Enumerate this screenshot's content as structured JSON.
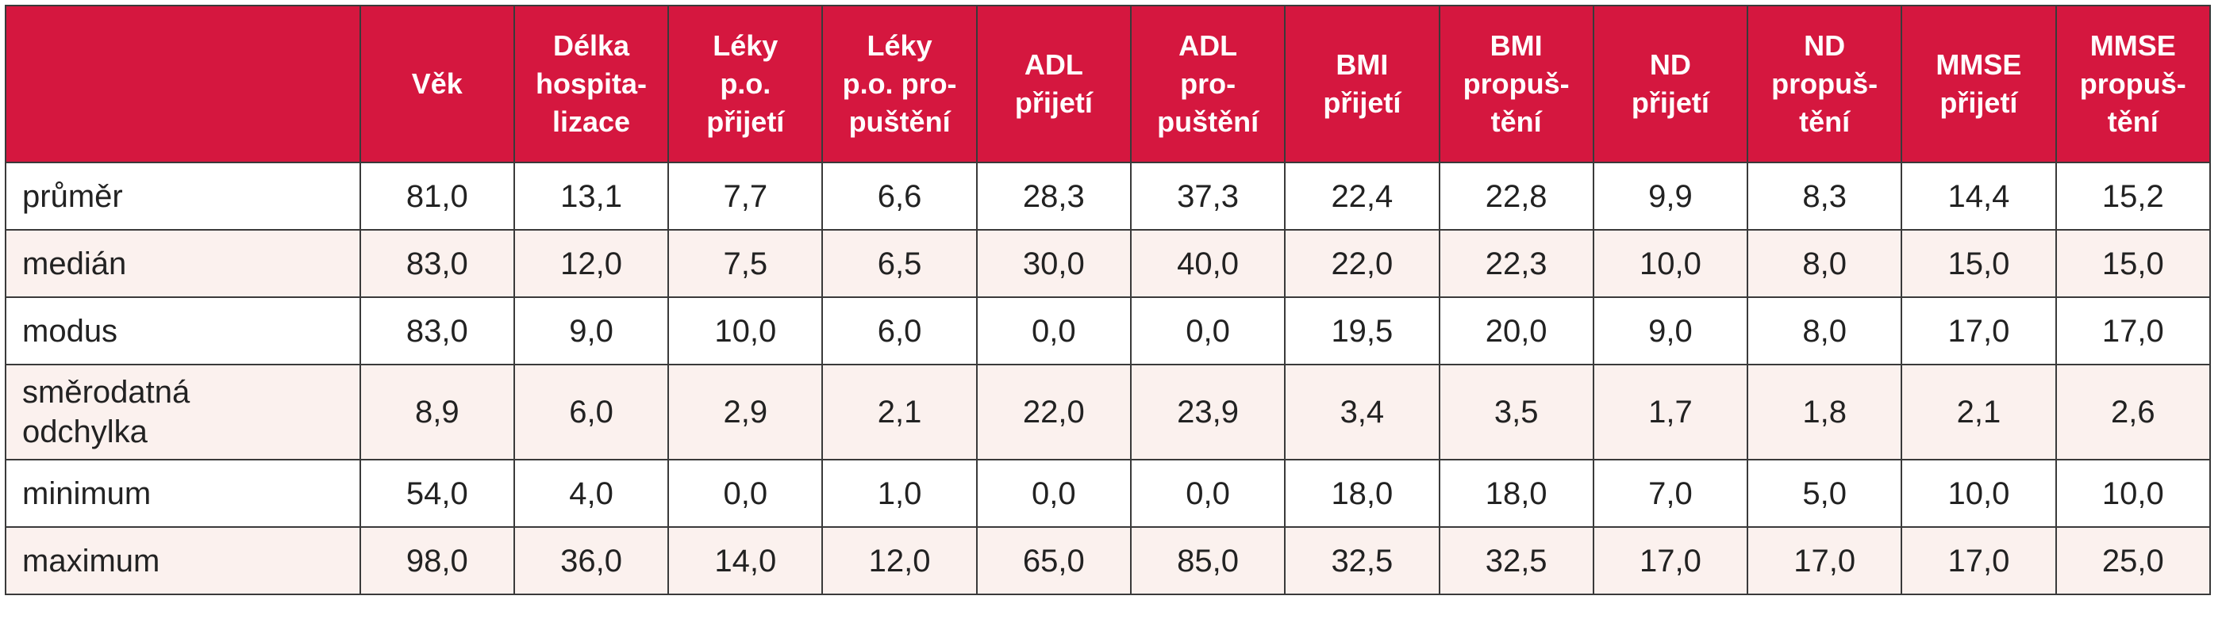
{
  "table": {
    "headers": [
      "",
      "Věk",
      "Délka\nhospita-\nlizace",
      "Léky\np.o.\npřijetí",
      "Léky\np.o. pro-\npuštění",
      "ADL\npřijetí",
      "ADL\npro-\npuštění",
      "BMI\npřijetí",
      "BMI\npropuš-\ntění",
      "ND\npřijetí",
      "ND\npropuš-\ntění",
      "MMSE\npřijetí",
      "MMSE\npropuš-\ntění"
    ],
    "rows": [
      {
        "label": "průměr",
        "values": [
          "81,0",
          "13,1",
          "7,7",
          "6,6",
          "28,3",
          "37,3",
          "22,4",
          "22,8",
          "9,9",
          "8,3",
          "14,4",
          "15,2"
        ]
      },
      {
        "label": "medián",
        "values": [
          "83,0",
          "12,0",
          "7,5",
          "6,5",
          "30,0",
          "40,0",
          "22,0",
          "22,3",
          "10,0",
          "8,0",
          "15,0",
          "15,0"
        ]
      },
      {
        "label": "modus",
        "values": [
          "83,0",
          "9,0",
          "10,0",
          "6,0",
          "0,0",
          "0,0",
          "19,5",
          "20,0",
          "9,0",
          "8,0",
          "17,0",
          "17,0"
        ]
      },
      {
        "label": "směrodatná\nodchylka",
        "values": [
          "8,9",
          "6,0",
          "2,9",
          "2,1",
          "22,0",
          "23,9",
          "3,4",
          "3,5",
          "1,7",
          "1,8",
          "2,1",
          "2,6"
        ]
      },
      {
        "label": "minimum",
        "values": [
          "54,0",
          "4,0",
          "0,0",
          "1,0",
          "0,0",
          "0,0",
          "18,0",
          "18,0",
          "7,0",
          "5,0",
          "10,0",
          "10,0"
        ]
      },
      {
        "label": "maximum",
        "values": [
          "98,0",
          "36,0",
          "14,0",
          "12,0",
          "65,0",
          "85,0",
          "32,5",
          "32,5",
          "17,0",
          "17,0",
          "17,0",
          "25,0"
        ]
      }
    ]
  },
  "colors": {
    "header_bg": "#d5173f",
    "header_text": "#ffffff",
    "stripe_bg": "#fbf1ee",
    "border": "#3a3a3a"
  }
}
